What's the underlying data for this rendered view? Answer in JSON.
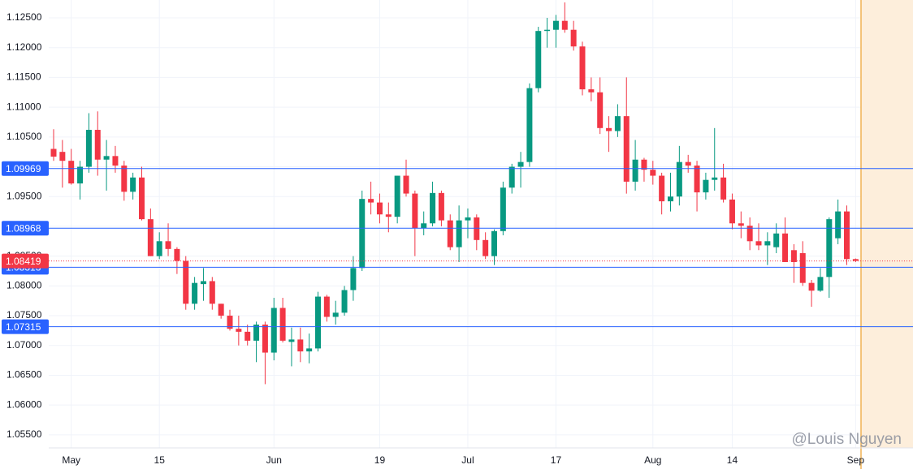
{
  "chart_data": {
    "type": "candlestick",
    "categories": [
      null,
      null,
      "May",
      null,
      null,
      null,
      null,
      null,
      null,
      null,
      null,
      null,
      "15",
      null,
      null,
      null,
      null,
      null,
      null,
      null,
      null,
      null,
      null,
      null,
      null,
      "Jun",
      null,
      null,
      null,
      null,
      null,
      null,
      null,
      null,
      null,
      null,
      null,
      "19",
      null,
      null,
      null,
      null,
      null,
      null,
      null,
      null,
      null,
      "Jul",
      null,
      null,
      null,
      null,
      null,
      null,
      null,
      null,
      null,
      "17",
      null,
      null,
      null,
      null,
      null,
      null,
      null,
      null,
      null,
      null,
      "Aug",
      null,
      null,
      null,
      null,
      null,
      null,
      null,
      null,
      "14",
      null,
      null,
      null,
      null,
      null,
      null,
      null,
      null,
      null,
      null,
      null,
      null,
      null,
      "Sep"
    ],
    "series": [
      {
        "up_color": "#089981",
        "down_color": "#f23645",
        "open": [
          1.103,
          1.1025,
          1.101,
          1.0972,
          1.1,
          1.1062,
          1.1012,
          1.1018,
          1.1002,
          1.0958,
          1.0982,
          1.0912,
          1.085,
          1.0875,
          1.0862,
          1.0842,
          1.077,
          1.0803,
          1.0808,
          1.077,
          1.075,
          1.0728,
          1.0723,
          1.0708,
          1.0735,
          1.0688,
          1.0763,
          1.0706,
          1.071,
          1.069,
          1.0695,
          1.0782,
          1.0748,
          1.0755,
          1.0793,
          1.083,
          1.0946,
          1.094,
          1.092,
          1.0916,
          1.0985,
          1.0955,
          1.0897,
          1.0905,
          1.0956,
          1.091,
          1.0865,
          1.091,
          1.0915,
          1.0877,
          1.085,
          1.0892,
          1.0965,
          1.1,
          1.1008,
          1.1132,
          1.1228,
          1.123,
          1.1245,
          1.123,
          1.1202,
          1.113,
          1.1125,
          1.1065,
          1.106,
          1.1085,
          1.0975,
          1.1012,
          1.0995,
          1.0985,
          1.0942,
          1.095,
          1.1008,
          1.1002,
          1.0957,
          1.0978,
          1.0982,
          1.0945,
          1.0905,
          1.0901,
          1.0875,
          1.0868,
          1.0865,
          1.0888,
          1.086,
          1.0855,
          1.0805,
          1.0792,
          1.0815,
          1.088,
          1.0925,
          1.0845
        ],
        "high": [
          1.1063,
          1.1045,
          1.103,
          1.101,
          1.109,
          1.1093,
          1.1045,
          1.1035,
          1.101,
          1.099,
          1.1,
          1.093,
          1.089,
          1.0905,
          1.0865,
          1.085,
          1.0815,
          1.083,
          1.0815,
          1.077,
          1.076,
          1.075,
          1.0735,
          1.074,
          1.074,
          1.078,
          1.078,
          1.073,
          1.073,
          1.072,
          1.079,
          1.0785,
          1.0775,
          1.08,
          1.085,
          1.096,
          1.0975,
          1.0955,
          1.094,
          1.0985,
          1.1012,
          1.096,
          1.0925,
          1.0975,
          1.096,
          1.092,
          1.0935,
          1.093,
          1.092,
          1.089,
          1.0895,
          1.0975,
          1.1005,
          1.1025,
          1.114,
          1.1235,
          1.125,
          1.1255,
          1.1276,
          1.1245,
          1.121,
          1.115,
          1.115,
          1.1085,
          1.1105,
          1.115,
          1.1045,
          1.1015,
          1.101,
          1.099,
          1.099,
          1.1035,
          1.102,
          1.101,
          1.099,
          1.1065,
          1.1005,
          1.0955,
          1.0925,
          1.0915,
          1.0905,
          1.089,
          1.0905,
          1.0915,
          1.087,
          1.0875,
          1.081,
          1.083,
          1.0915,
          1.0945,
          1.0935,
          1.0846
        ],
        "low": [
          1.101,
          1.0965,
          1.097,
          1.0945,
          1.099,
          1.0985,
          1.096,
          1.099,
          1.0943,
          1.0945,
          1.091,
          1.085,
          1.0845,
          1.085,
          1.082,
          1.076,
          1.076,
          1.0775,
          1.076,
          1.0745,
          1.0725,
          1.07,
          1.07,
          1.0672,
          1.0635,
          1.0675,
          1.0705,
          1.0665,
          1.0672,
          1.067,
          1.069,
          1.074,
          1.0735,
          1.075,
          1.0775,
          1.0825,
          1.092,
          1.0905,
          1.089,
          1.0905,
          1.095,
          1.085,
          1.0885,
          1.09,
          1.09,
          1.086,
          1.084,
          1.088,
          1.086,
          1.0845,
          1.0835,
          1.0885,
          1.0955,
          1.0965,
          1.1,
          1.1125,
          1.12,
          1.12,
          1.1225,
          1.1195,
          1.112,
          1.111,
          1.1055,
          1.1025,
          1.105,
          1.0955,
          1.096,
          1.0975,
          1.097,
          1.092,
          1.0925,
          1.0935,
          1.099,
          1.0925,
          1.0945,
          1.096,
          1.094,
          1.0895,
          1.088,
          1.086,
          1.086,
          1.0835,
          1.0855,
          1.084,
          1.0805,
          1.08,
          1.0765,
          1.079,
          1.078,
          1.087,
          1.0835,
          1.084
        ],
        "close": [
          1.1017,
          1.101,
          1.0972,
          1.1,
          1.1062,
          1.1012,
          1.1018,
          1.1002,
          1.0958,
          1.0982,
          1.0912,
          1.085,
          1.0875,
          1.0862,
          1.0842,
          1.077,
          1.0805,
          1.0808,
          1.077,
          1.075,
          1.0728,
          1.0723,
          1.0708,
          1.0735,
          1.0688,
          1.0763,
          1.0708,
          1.071,
          1.069,
          1.0695,
          1.0782,
          1.0748,
          1.0755,
          1.0793,
          1.083,
          1.0946,
          1.094,
          1.092,
          1.0916,
          1.0985,
          1.0955,
          1.0897,
          1.0905,
          1.0956,
          1.091,
          1.0865,
          1.091,
          1.0915,
          1.0877,
          1.085,
          1.0892,
          1.0965,
          1.1,
          1.1008,
          1.1132,
          1.1228,
          1.123,
          1.1245,
          1.123,
          1.1202,
          1.113,
          1.1125,
          1.1065,
          1.106,
          1.1085,
          1.0975,
          1.1012,
          1.0995,
          1.0985,
          1.0942,
          1.095,
          1.1008,
          1.1002,
          1.0957,
          1.0978,
          1.0982,
          1.0945,
          1.0905,
          1.0901,
          1.0875,
          1.0868,
          1.0875,
          1.0888,
          1.084,
          1.084,
          1.0805,
          1.0792,
          1.0815,
          1.0912,
          1.0925,
          1.0845,
          1.0842
        ]
      }
    ],
    "ylim": [
      1.0528,
      1.128
    ],
    "yticks": [
      {
        "value": 1.055,
        "label": "1.05500"
      },
      {
        "value": 1.06,
        "label": "1.06000"
      },
      {
        "value": 1.065,
        "label": "1.06500"
      },
      {
        "value": 1.07,
        "label": "1.07000"
      },
      {
        "value": 1.075,
        "label": "1.07500"
      },
      {
        "value": 1.08,
        "label": "1.08000"
      },
      {
        "value": 1.085,
        "label": "1.08500"
      },
      {
        "value": 1.09,
        "label": "1.09000"
      },
      {
        "value": 1.095,
        "label": "1.09500"
      },
      {
        "value": 1.1,
        "label": "1.10000"
      },
      {
        "value": 1.105,
        "label": "1.10500"
      },
      {
        "value": 1.11,
        "label": "1.11000"
      },
      {
        "value": 1.115,
        "label": "1.11500"
      },
      {
        "value": 1.12,
        "label": "1.12000"
      },
      {
        "value": 1.125,
        "label": "1.12500"
      }
    ],
    "levels": [
      1.09969,
      1.08968,
      1.08313,
      1.07315
    ],
    "level_color": "#2962ff",
    "last_price": 1.08419,
    "last_price_color": "#f23645",
    "grid": true,
    "watermark": "@Louis Nguyen"
  }
}
